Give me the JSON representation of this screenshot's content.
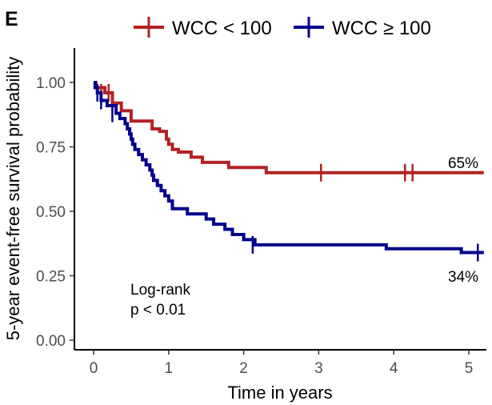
{
  "panel_label": "E",
  "colors": {
    "low": "#B22222",
    "high": "#00008B",
    "axis": "#000000",
    "tick_text": "#4d4d4d"
  },
  "chart_data": {
    "type": "line",
    "subtype": "kaplan-meier step curve",
    "xlabel": "Time in years",
    "ylabel": "5-year event-free survival probability",
    "xlim": [
      0,
      5.2
    ],
    "ylim": [
      0,
      1.05
    ],
    "x_ticks": [
      "0",
      "1",
      "2",
      "3",
      "4",
      "5"
    ],
    "y_ticks": [
      "0.00",
      "0.25",
      "0.50",
      "0.75",
      "1.00"
    ],
    "grid": false,
    "legend_position": "top",
    "annotation": {
      "line1": "Log-rank",
      "line2": "p < 0.01"
    },
    "series": [
      {
        "name": "WCC < 100",
        "color": "#B22222",
        "end_label": "65%",
        "x": [
          0,
          0.03,
          0.15,
          0.25,
          0.37,
          0.5,
          0.78,
          0.88,
          0.97,
          1.0,
          1.05,
          1.13,
          1.3,
          1.45,
          1.6,
          1.8,
          2.3,
          5.2
        ],
        "y": [
          1.0,
          0.98,
          0.96,
          0.92,
          0.89,
          0.85,
          0.82,
          0.81,
          0.78,
          0.76,
          0.74,
          0.73,
          0.71,
          0.69,
          0.69,
          0.67,
          0.65,
          0.65
        ],
        "censor_x": [
          0.1,
          0.2,
          0.25,
          3.03,
          4.15,
          4.25
        ],
        "censor_y": [
          0.96,
          0.96,
          0.92,
          0.65,
          0.65,
          0.65
        ]
      },
      {
        "name": "WCC ≥ 100",
        "color": "#00008B",
        "end_label": "34%",
        "x": [
          0,
          0.02,
          0.05,
          0.1,
          0.18,
          0.3,
          0.35,
          0.42,
          0.45,
          0.48,
          0.5,
          0.52,
          0.55,
          0.6,
          0.65,
          0.7,
          0.75,
          0.78,
          0.8,
          0.85,
          0.9,
          0.95,
          1.0,
          1.05,
          1.25,
          1.5,
          1.6,
          1.75,
          1.85,
          2.0,
          2.15,
          3.9,
          4.9,
          5.2
        ],
        "y": [
          1.0,
          0.98,
          0.96,
          0.93,
          0.91,
          0.88,
          0.86,
          0.84,
          0.82,
          0.8,
          0.78,
          0.76,
          0.74,
          0.72,
          0.7,
          0.68,
          0.66,
          0.64,
          0.62,
          0.6,
          0.58,
          0.56,
          0.54,
          0.51,
          0.49,
          0.47,
          0.45,
          0.43,
          0.41,
          0.39,
          0.37,
          0.355,
          0.34,
          0.34
        ],
        "censor_x": [
          0.05,
          0.1,
          0.25,
          2.12,
          5.12
        ],
        "censor_y": [
          0.96,
          0.93,
          0.88,
          0.37,
          0.34
        ]
      }
    ]
  }
}
